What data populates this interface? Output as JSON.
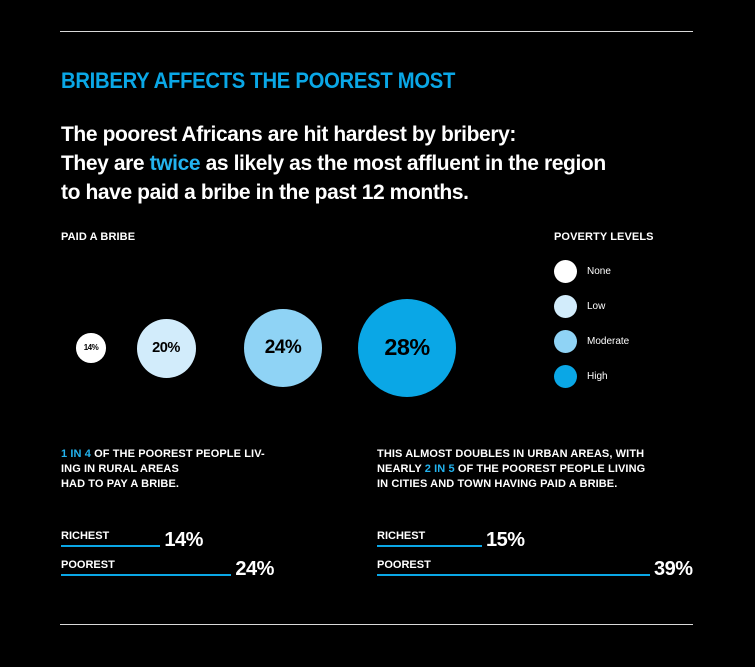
{
  "title": "BRIBERY AFFECTS THE POOREST MOST",
  "headline": {
    "line1": "The poorest Africans are hit hardest by bribery:",
    "line2_pre": "They are ",
    "line2_highlight": "twice",
    "line2_post": " as likely as the most affluent in the region",
    "line3": "to have paid a bribe in the past 12 months."
  },
  "colors": {
    "accent": "#0aa7e6",
    "none": "#ffffff",
    "low": "#d2ecfb",
    "moderate": "#8fd3f5",
    "high": "#0aa7e6"
  },
  "chart_data": [
    {
      "type": "bubble",
      "title": "PAID A BRIBE",
      "legend_title": "POVERTY LEVELS",
      "categories": [
        "None",
        "Low",
        "Moderate",
        "High"
      ],
      "values": [
        14,
        20,
        24,
        28
      ],
      "labels": [
        "14%",
        "20%",
        "24%",
        "28%"
      ],
      "unit": "%",
      "legend": "right"
    },
    {
      "type": "bar",
      "categories": [
        "RICHEST",
        "POOREST"
      ],
      "values": [
        14,
        24
      ],
      "labels": [
        "14%",
        "24%"
      ],
      "unit": "%"
    },
    {
      "type": "bar",
      "categories": [
        "RICHEST",
        "POOREST"
      ],
      "values": [
        15,
        39
      ],
      "labels": [
        "15%",
        "39%"
      ],
      "unit": "%"
    }
  ],
  "notes": {
    "rural": {
      "highlight": "1 IN 4",
      "line1_post": "  OF THE POOREST PEOPLE LIV-",
      "line2": "ING IN RURAL AREAS",
      "line3": "HAD TO PAY A BRIBE."
    },
    "urban": {
      "line1": "THIS ALMOST DOUBLES IN URBAN AREAS, WITH",
      "line2_pre": "NEARLY ",
      "highlight": "2 IN 5",
      "line2_post": " OF THE POOREST PEOPLE LIVING",
      "line3": "IN CITIES AND TOWN HAVING PAID A BRIBE."
    }
  }
}
